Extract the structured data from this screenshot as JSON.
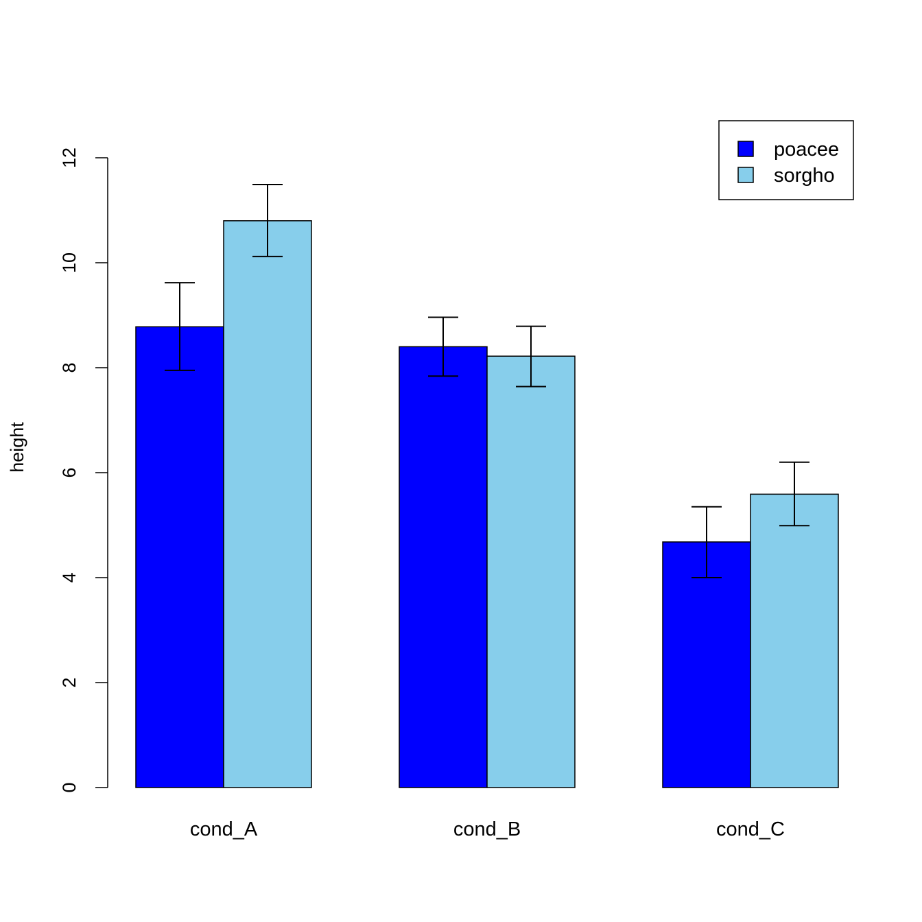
{
  "chart_data": {
    "type": "bar",
    "categories": [
      "cond_A",
      "cond_B",
      "cond_C"
    ],
    "series": [
      {
        "name": "poacee",
        "color": "#0000FF",
        "values": [
          8.78,
          8.4,
          4.68
        ],
        "error_low": [
          7.95,
          7.84,
          4.0
        ],
        "error_high": [
          9.62,
          8.96,
          5.35
        ]
      },
      {
        "name": "sorgho",
        "color": "#87CEEB",
        "values": [
          10.8,
          8.22,
          5.59
        ],
        "error_low": [
          10.12,
          7.64,
          4.99
        ],
        "error_high": [
          11.49,
          8.79,
          6.2
        ]
      }
    ],
    "ylabel": "height",
    "ylim": [
      0,
      12
    ],
    "yticks": [
      0,
      2,
      4,
      6,
      8,
      10,
      12
    ],
    "legend": "top-right",
    "grid": false
  }
}
